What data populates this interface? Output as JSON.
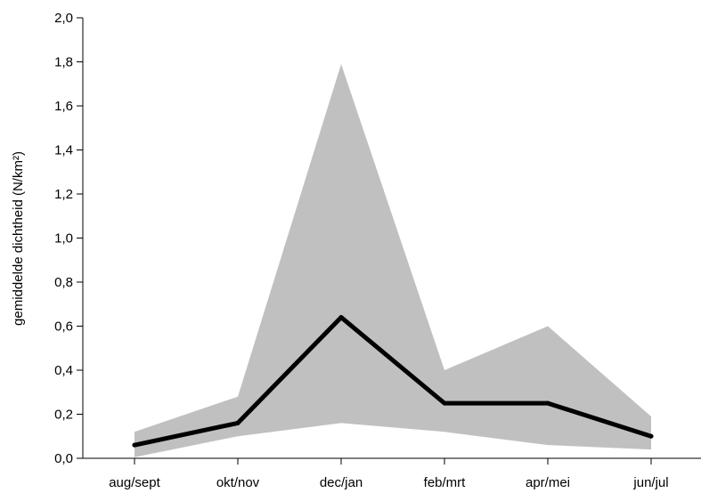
{
  "chart_data": {
    "type": "line",
    "title": "",
    "xlabel": "",
    "ylabel": "gemiddelde dichtheid (N/km²)",
    "categories": [
      "aug/sept",
      "okt/nov",
      "dec/jan",
      "feb/mrt",
      "apr/mei",
      "jun/jul"
    ],
    "ylim": [
      0,
      2.0
    ],
    "yticks": [
      "0,0",
      "0,2",
      "0,4",
      "0,6",
      "0,8",
      "1,0",
      "1,2",
      "1,4",
      "1,6",
      "1,8",
      "2,0"
    ],
    "series": [
      {
        "values": [
          0.06,
          0.16,
          0.64,
          0.25,
          0.25,
          0.1
        ]
      }
    ],
    "band": {
      "upper": [
        0.12,
        0.28,
        1.79,
        0.4,
        0.6,
        0.19
      ],
      "lower": [
        0.005,
        0.1,
        0.16,
        0.12,
        0.06,
        0.04
      ]
    },
    "colors": {
      "line": "#000000",
      "band": "#c0c0c0"
    },
    "grid": false,
    "legend": "none"
  }
}
